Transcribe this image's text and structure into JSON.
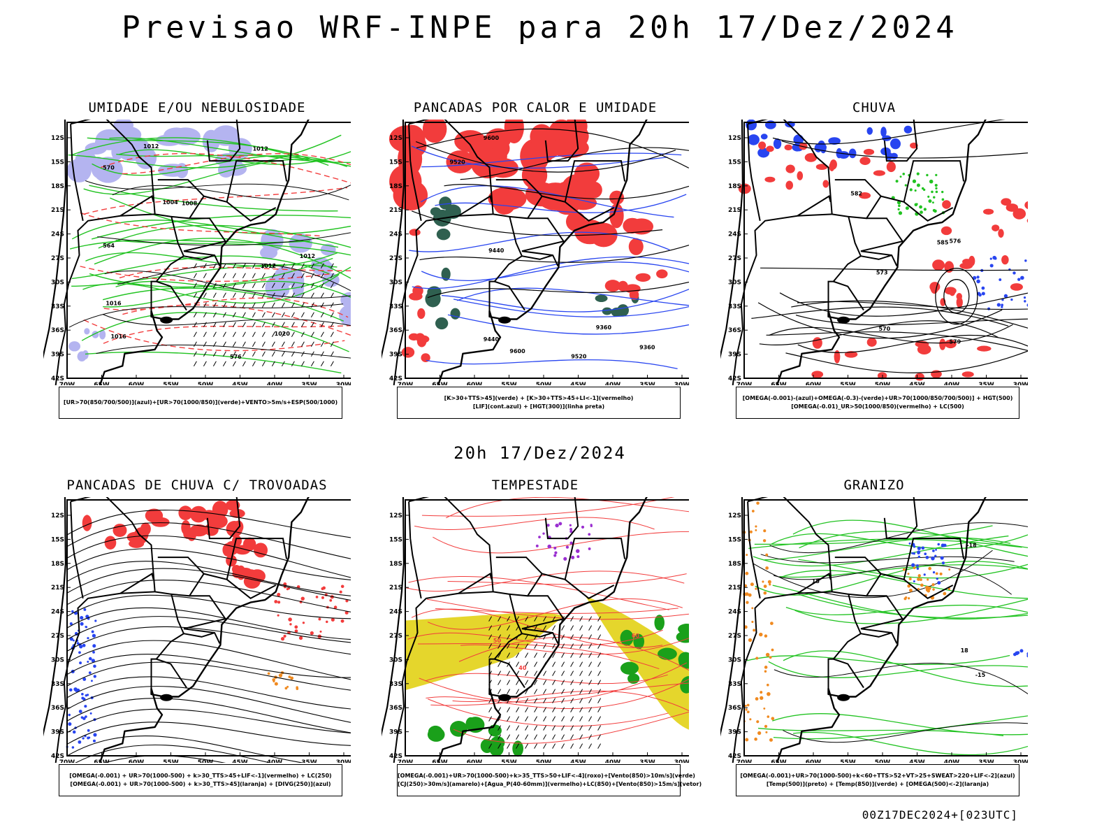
{
  "title": "Previsao WRF-INPE  para 20h 17/Dez/2024",
  "mid_title": "20h 17/Dez/2024",
  "footer": "00Z17DEC2024+[023UTC]",
  "axes": {
    "lat_labels": [
      "12S",
      "15S",
      "18S",
      "21S",
      "24S",
      "27S",
      "30S",
      "33S",
      "36S",
      "39S",
      "42S"
    ],
    "lon_labels": [
      "70W",
      "65W",
      "60W",
      "55W",
      "50W",
      "45W",
      "40W",
      "35W",
      "30W"
    ]
  },
  "panels": [
    {
      "title": "UMIDADE E/OU NEBULOSIDADE",
      "legend": [
        "[UR>70(850/700/500)](azul)+[UR>70(1000/850)](verde)+VENTO>5m/s+ESP(500/1000)"
      ],
      "contour_labels": [
        "1012",
        "1012",
        "1016",
        "1012",
        "1008",
        "1020",
        "1016",
        "1012",
        "1004",
        "576",
        "570",
        "564"
      ]
    },
    {
      "title": "PANCADAS POR CALOR E UMIDADE",
      "legend": [
        "[K>30+TTS>45](verde) + [K>30+TTS>45+LI<-1](vermelho)",
        "[LIF](cont.azul) + [HGT(300)](linha preta)"
      ],
      "contour_labels": [
        "9600",
        "9520",
        "9440",
        "9360",
        "9600",
        "9520",
        "9440",
        "9360"
      ]
    },
    {
      "title": "CHUVA",
      "legend": [
        "[OMEGA(-0.001)-(azul)+OMEGA(-0.3)-(verde)+UR>70(1000/850/700/500)] + HGT(500)",
        "[OMEGA(-0.01)_UR>50(1000/850)(vermelho) + LC(500)"
      ],
      "contour_labels": [
        "585",
        "579",
        "576",
        "573",
        "570",
        "582"
      ]
    },
    {
      "title": "PANCADAS DE CHUVA C/ TROVOADAS",
      "legend": [
        "[OMEGA(-0.001) + UR>70(1000-500) + k>30_TTS>45+LIF<-1](vermelho) + LC(250)",
        "[OMEGA(-0.001) + UR>70(1000-500) + k>30_TTS>45](laranja) + [DIVG(250)](azul)"
      ],
      "contour_labels": []
    },
    {
      "title": "TEMPESTADE",
      "legend": [
        "[OMEGA(-0.001)+UR>70(1000-500)+k>35_TTS>50+LIF<-4](roxo)+[Vento(850)>10m/s](verde)",
        "[CJ(250)>30m/s](amarelo)+[Agua_P(40-60mm)](vermelho)+LC(850)+[Vento(850)>15m/s](vetor)"
      ],
      "contour_labels": [
        "40",
        "50",
        "60"
      ]
    },
    {
      "title": "GRANIZO",
      "legend": [
        "[OMEGA(-0.001)+UR>70(1000-500)+k<60+TTS>52+VT>25+SWEAT>220+LIF<-2](azul)",
        "[Temp(500)](preto) + [Temp(850)](verde) + [OMEGA(500)<-2](laranja)"
      ],
      "contour_labels": [
        "-15",
        "-18",
        "15",
        "18"
      ]
    }
  ],
  "colors": {
    "red": "#f23c3c",
    "green": "#22c322",
    "blue": "#2845f0",
    "lavender": "#b4b4f0",
    "teal": "#2f6050",
    "yellow": "#e5d62c",
    "purple": "#9a2fd0",
    "orange": "#f08a20",
    "darkgreen": "#1aa01a"
  }
}
